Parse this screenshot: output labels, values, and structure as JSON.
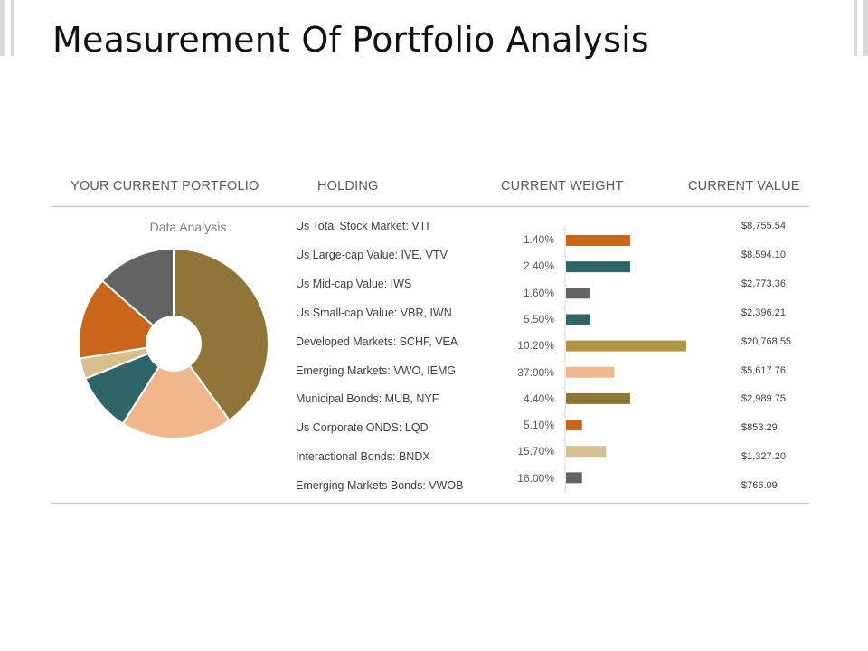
{
  "title": "Measurement Of Portfolio Analysis",
  "headers": {
    "portfolio": "YOUR CURRENT PORTFOLIO",
    "holding": "HOLDING",
    "weight": "CURRENT WEIGHT",
    "value": "CURRENT VALUE"
  },
  "chart_data": [
    {
      "type": "pie",
      "title": "Data Analysis",
      "hole": true,
      "slices": [
        {
          "value": 40,
          "color": "#8f7638"
        },
        {
          "value": 19,
          "color": "#f0b78c"
        },
        {
          "value": 10,
          "color": "#2f6566"
        },
        {
          "value": 3.5,
          "color": "#d6c08f"
        },
        {
          "value": 14,
          "color": "#c9661c"
        },
        {
          "value": 13.5,
          "color": "#636363"
        }
      ]
    },
    {
      "type": "bar",
      "orientation": "horizontal",
      "grid": false,
      "categories": [
        "Us Total Stock Market: VTI",
        "Us Large-cap Value: IVE, VTV",
        "Us Mid-cap Value: IWS",
        "Us Small-cap Value: VBR, IWN",
        "Developed Markets: SCHF, VEA",
        "Emerging Markets: VWO, IEMG",
        "Municipal Bonds: MUB, NYF",
        "Us Corporate ONDS: LQD",
        "Interactional Bonds: BNDX",
        "Emerging Markets Bonds: VWOB"
      ],
      "weight_labels": [
        "1.40%",
        "2.40%",
        "1.60%",
        "5.50%",
        "10.20%",
        "37.90%",
        "4.40%",
        "5.10%",
        "15.70%",
        "16.00%"
      ],
      "values": [
        8,
        8,
        3,
        3,
        15,
        6,
        8,
        2,
        5,
        2
      ],
      "colors": [
        "#c9661c",
        "#2f6566",
        "#636363",
        "#2f6566",
        "#b09447",
        "#f0b78c",
        "#8f7638",
        "#c9661c",
        "#d6c08f",
        "#636363"
      ],
      "current_values": [
        "$8,755.54",
        "$8,594.10",
        "$2,773.36",
        "$2,396.21",
        "$20,768.55",
        "$5,617.76",
        "$2,989.75",
        "$853.29",
        "$1,327.20",
        "$766.09"
      ]
    }
  ]
}
